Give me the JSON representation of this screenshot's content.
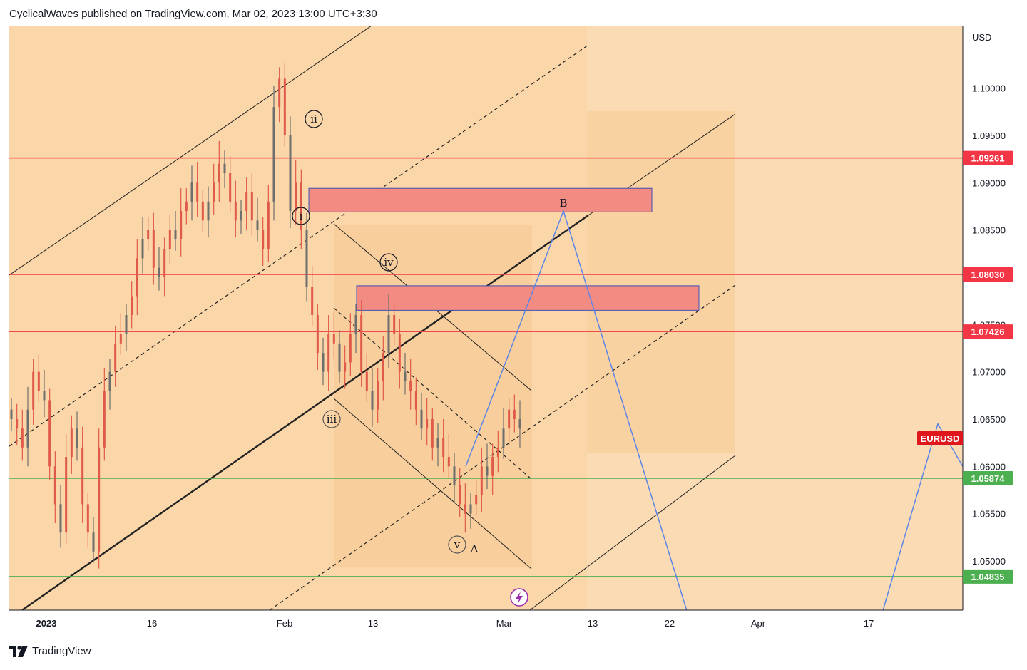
{
  "header": {
    "publisher_text": "CyclicalWaves published on TradingView.com, Mar 02, 2023 13:00 UTC+3:30"
  },
  "footer": {
    "brand": "TradingView"
  },
  "colors": {
    "background": "#fadbb4",
    "zone_light": "#fbd9ae",
    "zone_mid": "#f8cf9d",
    "candle": "#e05a4a",
    "candle_dark": "#6e6e6e",
    "resistance": "#f23645",
    "support": "#4caf50",
    "supply_zone": "#f28b82",
    "projection": "#5b85e8",
    "channel": "#222222"
  },
  "chart_data": {
    "type": "candlestick",
    "symbol": "EURUSD",
    "currency_label": "USD",
    "y_ticks": [
      "1.10000",
      "1.09500",
      "1.09000",
      "1.08500",
      "1.07500",
      "1.07000",
      "1.06500",
      "1.06000",
      "1.05500",
      "1.05000"
    ],
    "y_tick_values": [
      1.1,
      1.095,
      1.09,
      1.085,
      1.075,
      1.07,
      1.065,
      1.06,
      1.055,
      1.05
    ],
    "x_ticks": [
      "2023",
      "16",
      "Feb",
      "13",
      "Mar",
      "13",
      "22",
      "Apr",
      "17"
    ],
    "ylim": [
      1.0448,
      1.1066
    ],
    "horizontal_levels": [
      {
        "label": "1.09261",
        "value": 1.09261,
        "kind": "resistance"
      },
      {
        "label": "1.08030",
        "value": 1.0803,
        "kind": "resistance"
      },
      {
        "label": "1.07426",
        "value": 1.07426,
        "kind": "resistance"
      },
      {
        "label": "1.05874",
        "value": 1.05874,
        "kind": "support"
      },
      {
        "label": "1.04835",
        "value": 1.04835,
        "kind": "support"
      }
    ],
    "last_price_tag": {
      "label": "EURUSD",
      "value": 1.0631
    },
    "supply_zones": [
      {
        "from": 1.0869,
        "to": 1.0894
      },
      {
        "from": 1.0765,
        "to": 1.0791
      }
    ],
    "wave_labels": [
      "ii",
      "i",
      "iv",
      "iii",
      "v",
      "A",
      "B"
    ],
    "projection_path": [
      1.06,
      1.087,
      1.044,
      1.044,
      1.0645,
      1.06
    ],
    "close_series": [
      1.065,
      1.064,
      1.062,
      1.066,
      1.07,
      1.068,
      1.067,
      1.06,
      1.056,
      1.053,
      1.061,
      1.064,
      1.062,
      1.056,
      1.053,
      1.051,
      1.062,
      1.068,
      1.07,
      1.073,
      1.074,
      1.076,
      1.078,
      1.082,
      1.084,
      1.085,
      1.081,
      1.08,
      1.083,
      1.085,
      1.084,
      1.087,
      1.088,
      1.09,
      1.088,
      1.086,
      1.088,
      1.09,
      1.092,
      1.091,
      1.088,
      1.086,
      1.087,
      1.089,
      1.086,
      1.085,
      1.083,
      1.088,
      1.098,
      1.101,
      1.095,
      1.087,
      1.09,
      1.085,
      1.079,
      1.076,
      1.072,
      1.07,
      1.074,
      1.073,
      1.07,
      1.071,
      1.074,
      1.076,
      1.07,
      1.068,
      1.066,
      1.069,
      1.072,
      1.076,
      1.074,
      1.07,
      1.069,
      1.068,
      1.066,
      1.064,
      1.065,
      1.062,
      1.063,
      1.061,
      1.06,
      1.058,
      1.056,
      1.055,
      1.056,
      1.057,
      1.06,
      1.059,
      1.061,
      1.062,
      1.064,
      1.066,
      1.065,
      1.064
    ],
    "title": ""
  }
}
